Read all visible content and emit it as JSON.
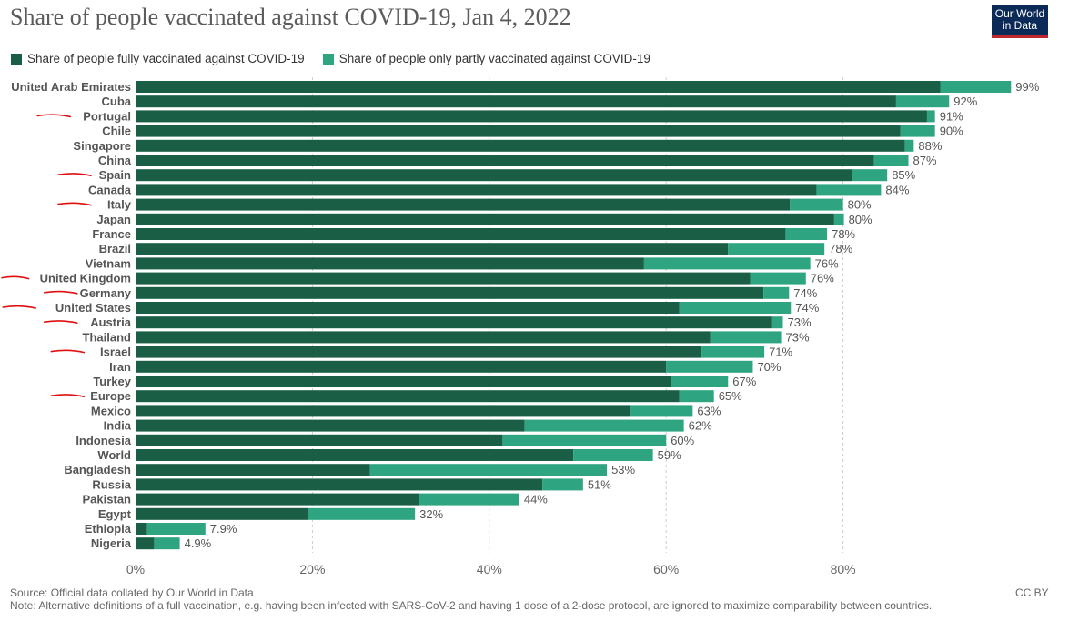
{
  "title": "Share of people vaccinated against COVID-19, Jan 4, 2022",
  "logo": {
    "line1": "Our World",
    "line2": "in Data"
  },
  "legend": [
    {
      "label": "Share of people fully vaccinated against COVID-19",
      "color": "#1a5e46"
    },
    {
      "label": "Share of people only partly vaccinated against COVID-19",
      "color": "#2ea580"
    }
  ],
  "chart_data": {
    "type": "bar",
    "orientation": "horizontal",
    "stacked": true,
    "categories": [
      "United Arab Emirates",
      "Cuba",
      "Portugal",
      "Chile",
      "Singapore",
      "China",
      "Spain",
      "Canada",
      "Italy",
      "Japan",
      "France",
      "Brazil",
      "Vietnam",
      "United Kingdom",
      "Germany",
      "United States",
      "Austria",
      "Thailand",
      "Israel",
      "Iran",
      "Turkey",
      "Europe",
      "Mexico",
      "India",
      "Indonesia",
      "World",
      "Bangladesh",
      "Russia",
      "Pakistan",
      "Egypt",
      "Ethiopia",
      "Nigeria"
    ],
    "series": [
      {
        "name": "Share of people fully vaccinated against COVID-19",
        "color": "#1a5e46",
        "values": [
          91,
          86,
          89.5,
          86.5,
          87,
          83.5,
          81,
          77,
          74,
          79,
          73.5,
          67,
          57.5,
          69.5,
          71,
          61.5,
          72,
          65,
          64,
          60,
          60.5,
          61.5,
          56,
          44,
          41.5,
          49.5,
          26.5,
          46,
          32,
          19.5,
          1.3,
          2.1
        ]
      },
      {
        "name": "Share of people only partly vaccinated against COVID-19",
        "color": "#2ea580",
        "values": [
          8,
          6,
          0.9,
          3.9,
          1,
          3.9,
          4,
          7.3,
          6,
          1.1,
          4.7,
          10.9,
          18.8,
          6.3,
          2.9,
          12.6,
          1.2,
          8,
          7.1,
          9.8,
          6.5,
          3.9,
          7,
          18,
          18.5,
          9,
          26.8,
          4.6,
          11.4,
          12.1,
          6.6,
          2.9
        ]
      }
    ],
    "totals": [
      "99%",
      "92%",
      "91%",
      "90%",
      "88%",
      "87%",
      "85%",
      "84%",
      "80%",
      "80%",
      "78%",
      "78%",
      "76%",
      "76%",
      "74%",
      "74%",
      "73%",
      "73%",
      "71%",
      "70%",
      "67%",
      "65%",
      "63%",
      "62%",
      "60%",
      "59%",
      "53%",
      "51%",
      "44%",
      "32%",
      "7.9%",
      "4.9%"
    ],
    "xticks": [
      "0%",
      "20%",
      "40%",
      "60%",
      "80%"
    ],
    "xtick_values": [
      0,
      20,
      40,
      60,
      80
    ],
    "xlim": [
      0,
      100
    ],
    "grid": true,
    "annotated_categories": [
      "Portugal",
      "Spain",
      "Italy",
      "United Kingdom",
      "Germany",
      "United States",
      "Austria",
      "Israel",
      "Europe"
    ],
    "annotation_color": "#e01010"
  },
  "footer": {
    "source": "Source: Official data collated by Our World in Data",
    "note": "Note: Alternative definitions of a full vaccination, e.g. having been infected with SARS-CoV-2 and having 1 dose of a 2-dose protocol, are ignored to maximize comparability between countries.",
    "license": "CC BY"
  }
}
